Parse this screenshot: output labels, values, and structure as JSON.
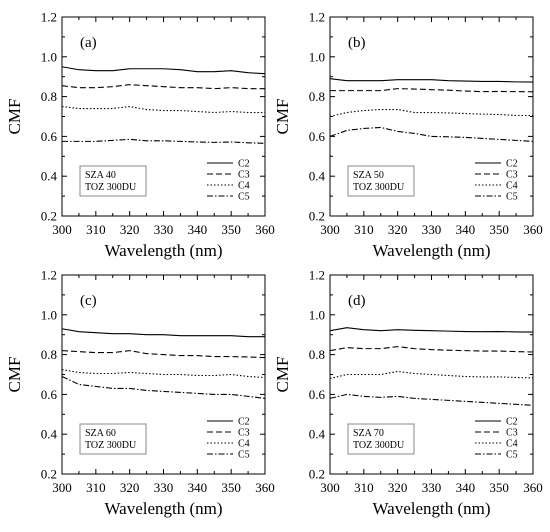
{
  "chart_data": [
    {
      "type": "line",
      "panel_label": "(a)",
      "xlabel": "Wavelength (nm)",
      "ylabel": "CMF",
      "xlim": [
        300,
        360
      ],
      "ylim": [
        0.2,
        1.2
      ],
      "xticks": [
        "300",
        "310",
        "320",
        "330",
        "340",
        "350",
        "360"
      ],
      "yticks": [
        "0.2",
        "0.4",
        "0.6",
        "0.8",
        "1.0",
        "1.2"
      ],
      "conditions": [
        "SZA 40",
        "TOZ 300DU"
      ],
      "x": [
        300,
        305,
        310,
        315,
        320,
        325,
        330,
        335,
        340,
        345,
        350,
        355,
        360
      ],
      "series": [
        {
          "name": "C2",
          "style": "solid",
          "values": [
            0.95,
            0.935,
            0.93,
            0.93,
            0.94,
            0.94,
            0.94,
            0.935,
            0.925,
            0.925,
            0.93,
            0.92,
            0.915
          ]
        },
        {
          "name": "C3",
          "style": "dashed",
          "values": [
            0.855,
            0.845,
            0.845,
            0.85,
            0.86,
            0.855,
            0.85,
            0.845,
            0.845,
            0.84,
            0.845,
            0.84,
            0.84
          ]
        },
        {
          "name": "C4",
          "style": "dotted",
          "values": [
            0.75,
            0.74,
            0.74,
            0.74,
            0.75,
            0.735,
            0.73,
            0.73,
            0.725,
            0.72,
            0.725,
            0.72,
            0.72
          ]
        },
        {
          "name": "C5",
          "style": "dashdot",
          "values": [
            0.575,
            0.575,
            0.575,
            0.58,
            0.585,
            0.578,
            0.578,
            0.575,
            0.572,
            0.57,
            0.572,
            0.568,
            0.565
          ]
        }
      ],
      "legend": "lower-right"
    },
    {
      "type": "line",
      "panel_label": "(b)",
      "xlabel": "Wavelength (nm)",
      "ylabel": "CMF",
      "xlim": [
        300,
        360
      ],
      "ylim": [
        0.2,
        1.2
      ],
      "xticks": [
        "300",
        "310",
        "320",
        "330",
        "340",
        "350",
        "360"
      ],
      "yticks": [
        "0.2",
        "0.4",
        "0.6",
        "0.8",
        "1.0",
        "1.2"
      ],
      "conditions": [
        "SZA 50",
        "TOZ 300DU"
      ],
      "x": [
        300,
        305,
        310,
        315,
        320,
        325,
        330,
        335,
        340,
        345,
        350,
        355,
        360
      ],
      "series": [
        {
          "name": "C2",
          "style": "solid",
          "values": [
            0.89,
            0.88,
            0.88,
            0.88,
            0.885,
            0.885,
            0.885,
            0.88,
            0.878,
            0.876,
            0.876,
            0.874,
            0.873
          ]
        },
        {
          "name": "C3",
          "style": "dashed",
          "values": [
            0.83,
            0.83,
            0.83,
            0.83,
            0.84,
            0.838,
            0.835,
            0.832,
            0.828,
            0.825,
            0.826,
            0.825,
            0.824
          ]
        },
        {
          "name": "C4",
          "style": "dotted",
          "values": [
            0.7,
            0.72,
            0.73,
            0.735,
            0.735,
            0.72,
            0.72,
            0.718,
            0.715,
            0.712,
            0.71,
            0.705,
            0.705
          ]
        },
        {
          "name": "C5",
          "style": "dashdot",
          "values": [
            0.6,
            0.63,
            0.64,
            0.645,
            0.625,
            0.615,
            0.6,
            0.598,
            0.595,
            0.59,
            0.585,
            0.58,
            0.575
          ]
        }
      ],
      "legend": "lower-right"
    },
    {
      "type": "line",
      "panel_label": "(c)",
      "xlabel": "Wavelength (nm)",
      "ylabel": "CMF",
      "xlim": [
        300,
        360
      ],
      "ylim": [
        0.2,
        1.2
      ],
      "xticks": [
        "300",
        "310",
        "320",
        "330",
        "340",
        "350",
        "360"
      ],
      "yticks": [
        "0.2",
        "0.4",
        "0.6",
        "0.8",
        "1.0",
        "1.2"
      ],
      "conditions": [
        "SZA 60",
        "TOZ 300DU"
      ],
      "x": [
        300,
        305,
        310,
        315,
        320,
        325,
        330,
        335,
        340,
        345,
        350,
        355,
        360
      ],
      "series": [
        {
          "name": "C2",
          "style": "solid",
          "values": [
            0.93,
            0.915,
            0.91,
            0.905,
            0.905,
            0.9,
            0.9,
            0.895,
            0.895,
            0.895,
            0.895,
            0.89,
            0.89
          ]
        },
        {
          "name": "C3",
          "style": "dashed",
          "values": [
            0.82,
            0.815,
            0.81,
            0.81,
            0.82,
            0.805,
            0.8,
            0.795,
            0.795,
            0.79,
            0.79,
            0.788,
            0.785
          ]
        },
        {
          "name": "C4",
          "style": "dotted",
          "values": [
            0.725,
            0.71,
            0.705,
            0.705,
            0.71,
            0.705,
            0.7,
            0.7,
            0.695,
            0.695,
            0.7,
            0.69,
            0.685
          ]
        },
        {
          "name": "C5",
          "style": "dashdot",
          "values": [
            0.69,
            0.65,
            0.64,
            0.63,
            0.63,
            0.62,
            0.615,
            0.61,
            0.605,
            0.6,
            0.6,
            0.59,
            0.58
          ]
        }
      ],
      "legend": "lower-right"
    },
    {
      "type": "line",
      "panel_label": "(d)",
      "xlabel": "Wavelength (nm)",
      "ylabel": "CMF",
      "xlim": [
        300,
        360
      ],
      "ylim": [
        0.2,
        1.2
      ],
      "xticks": [
        "300",
        "310",
        "320",
        "330",
        "340",
        "350",
        "360"
      ],
      "yticks": [
        "0.2",
        "0.4",
        "0.6",
        "0.8",
        "1.0",
        "1.2"
      ],
      "conditions": [
        "SZA 70",
        "TOZ 300DU"
      ],
      "x": [
        300,
        305,
        310,
        315,
        320,
        325,
        330,
        335,
        340,
        345,
        350,
        355,
        360
      ],
      "series": [
        {
          "name": "C2",
          "style": "solid",
          "values": [
            0.92,
            0.935,
            0.925,
            0.92,
            0.925,
            0.922,
            0.92,
            0.918,
            0.916,
            0.915,
            0.916,
            0.914,
            0.913
          ]
        },
        {
          "name": "C3",
          "style": "dashed",
          "values": [
            0.82,
            0.835,
            0.83,
            0.83,
            0.84,
            0.83,
            0.825,
            0.822,
            0.82,
            0.818,
            0.818,
            0.815,
            0.813
          ]
        },
        {
          "name": "C4",
          "style": "dotted",
          "values": [
            0.68,
            0.7,
            0.7,
            0.7,
            0.715,
            0.705,
            0.7,
            0.695,
            0.69,
            0.688,
            0.688,
            0.685,
            0.683
          ]
        },
        {
          "name": "C5",
          "style": "dashdot",
          "values": [
            0.58,
            0.6,
            0.59,
            0.585,
            0.59,
            0.58,
            0.575,
            0.57,
            0.565,
            0.56,
            0.555,
            0.55,
            0.545
          ]
        }
      ],
      "legend": "lower-right"
    }
  ]
}
